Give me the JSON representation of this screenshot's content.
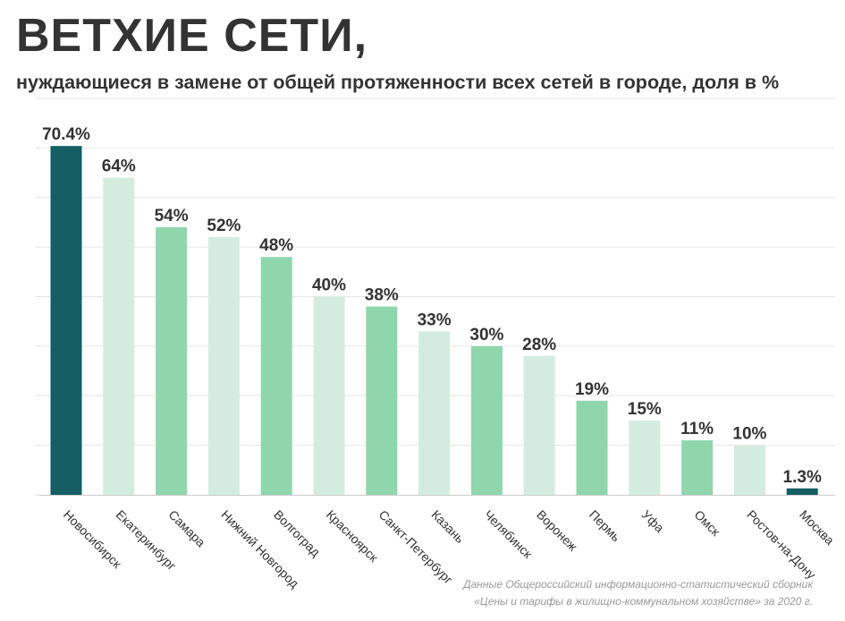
{
  "header": {
    "title": "ВЕТХИЕ СЕТИ,",
    "subtitle": "нуждающиеся в замене от общей протяженности всех сетей в городе, доля в %"
  },
  "source": {
    "line1": "Данные Общероссийский информационно-статистический сборник",
    "line2": "«Цены и тарифы в жилищно-коммунальном хозяйстве» за 2020 г."
  },
  "chart_data": {
    "type": "bar",
    "title": "ВЕТХИЕ СЕТИ,",
    "subtitle": "нуждающиеся в замене от общей протяженности всех сетей в городе, доля в %",
    "categories": [
      "Новосибирск",
      "Екатеринбург",
      "Самара",
      "Нижний Новгород",
      "Волгоград",
      "Красноярск",
      "Санкт-Петербург",
      "Казань",
      "Челябинск",
      "Воронеж",
      "Пермь",
      "Уфа",
      "Омск",
      "Ростов-на-Дону",
      "Москва"
    ],
    "values": [
      70.4,
      64,
      54,
      52,
      48,
      40,
      38,
      33,
      30,
      28,
      19,
      15,
      11,
      10,
      1.3
    ],
    "value_labels": [
      "70.4%",
      "64%",
      "54%",
      "52%",
      "48%",
      "40%",
      "38%",
      "33%",
      "30%",
      "28%",
      "19%",
      "15%",
      "11%",
      "10%",
      "1.3%"
    ],
    "bar_colors": [
      "#155e63",
      "#d3ecdf",
      "#8fd6ad",
      "#d3ecdf",
      "#8fd6ad",
      "#d3ecdf",
      "#8fd6ad",
      "#d3ecdf",
      "#8fd6ad",
      "#d3ecdf",
      "#8fd6ad",
      "#d3ecdf",
      "#8fd6ad",
      "#d3ecdf",
      "#155e63"
    ],
    "ylim": [
      0,
      80
    ],
    "grid": true,
    "xlabel": "",
    "ylabel": ""
  }
}
